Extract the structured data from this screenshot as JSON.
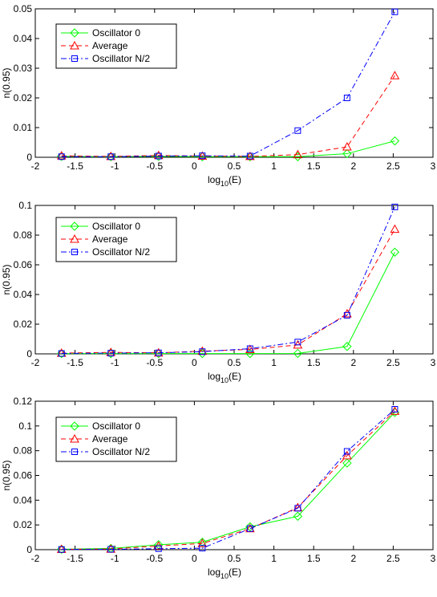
{
  "chart_data": [
    {
      "type": "line",
      "xlabel": "log10(E)",
      "ylabel": "n(0.95)",
      "xlim": [
        -2,
        3
      ],
      "ylim": [
        0,
        0.05
      ],
      "xticks": [
        "-2",
        "-1.5",
        "-1",
        "-0.5",
        "0",
        "0.5",
        "1",
        "1.5",
        "2",
        "2.5",
        "3"
      ],
      "yticks": [
        "0",
        "0.01",
        "0.02",
        "0.03",
        "0.04",
        "0.05"
      ],
      "grid": false,
      "legend": "top-left",
      "x": [
        -1.67,
        -1.05,
        -0.45,
        0.1,
        0.7,
        1.3,
        1.92,
        2.52
      ],
      "series": [
        {
          "name": "Oscillator 0",
          "color": "#00ff00",
          "marker": "diamond",
          "dash": "solid",
          "values": [
            0.0003,
            0.0002,
            0.0003,
            0.0002,
            0.0002,
            0.0002,
            0.0012,
            0.0055
          ]
        },
        {
          "name": "Average",
          "color": "#ff0000",
          "marker": "triangle",
          "dash": "dashed",
          "values": [
            0.0005,
            0.0003,
            0.0006,
            0.0004,
            0.0003,
            0.0009,
            0.0035,
            0.0275
          ]
        },
        {
          "name": "Oscillator N/2",
          "color": "#0000ff",
          "marker": "square",
          "dash": "dashdot",
          "values": [
            0.0002,
            0.0002,
            0.0004,
            0.0005,
            0.0004,
            0.009,
            0.02,
            0.049
          ]
        }
      ]
    },
    {
      "type": "line",
      "xlabel": "log10(E)",
      "ylabel": "n(0.95)",
      "xlim": [
        -2,
        3
      ],
      "ylim": [
        0,
        0.1
      ],
      "xticks": [
        "-2",
        "-1.5",
        "-1",
        "-0.5",
        "0",
        "0.5",
        "1",
        "1.5",
        "2",
        "2.5",
        "3"
      ],
      "yticks": [
        "0",
        "0.02",
        "0.04",
        "0.06",
        "0.08",
        "0.1"
      ],
      "grid": false,
      "legend": "top-left",
      "x": [
        -1.67,
        -1.05,
        -0.45,
        0.1,
        0.7,
        1.3,
        1.92,
        2.52
      ],
      "series": [
        {
          "name": "Oscillator 0",
          "color": "#00ff00",
          "marker": "diamond",
          "dash": "solid",
          "values": [
            0.0002,
            0.0002,
            0.0002,
            0.0002,
            0.0002,
            0.0003,
            0.005,
            0.0685
          ]
        },
        {
          "name": "Average",
          "color": "#ff0000",
          "marker": "triangle",
          "dash": "dashed",
          "values": [
            0.0005,
            0.001,
            0.0007,
            0.0018,
            0.003,
            0.006,
            0.027,
            0.084
          ]
        },
        {
          "name": "Oscillator N/2",
          "color": "#0000ff",
          "marker": "square",
          "dash": "dashdot",
          "values": [
            0.0003,
            0.0005,
            0.0007,
            0.0015,
            0.0035,
            0.008,
            0.026,
            0.099
          ]
        }
      ]
    },
    {
      "type": "line",
      "xlabel": "log10(E)",
      "ylabel": "n(0.95)",
      "xlim": [
        -2,
        3
      ],
      "ylim": [
        0,
        0.12
      ],
      "xticks": [
        "-2",
        "-1.5",
        "-1",
        "-0.5",
        "0",
        "0.5",
        "1",
        "1.5",
        "2",
        "2.5",
        "3"
      ],
      "yticks": [
        "0",
        "0.02",
        "0.04",
        "0.06",
        "0.08",
        "0.1",
        "0.12"
      ],
      "grid": false,
      "legend": "top-left",
      "x": [
        -1.67,
        -1.05,
        -0.45,
        0.1,
        0.7,
        1.3,
        1.92,
        2.52
      ],
      "series": [
        {
          "name": "Oscillator 0",
          "color": "#00ff00",
          "marker": "diamond",
          "dash": "solid",
          "values": [
            0.0003,
            0.001,
            0.004,
            0.006,
            0.0185,
            0.027,
            0.07,
            0.111
          ]
        },
        {
          "name": "Average",
          "color": "#ff0000",
          "marker": "triangle",
          "dash": "dashed",
          "values": [
            0.0003,
            0.0005,
            0.003,
            0.005,
            0.017,
            0.034,
            0.076,
            0.112
          ]
        },
        {
          "name": "Oscillator N/2",
          "color": "#0000ff",
          "marker": "square",
          "dash": "dashdot",
          "values": [
            0.0002,
            0.0003,
            0.0008,
            0.0012,
            0.017,
            0.0335,
            0.0795,
            0.1135
          ]
        }
      ]
    }
  ]
}
